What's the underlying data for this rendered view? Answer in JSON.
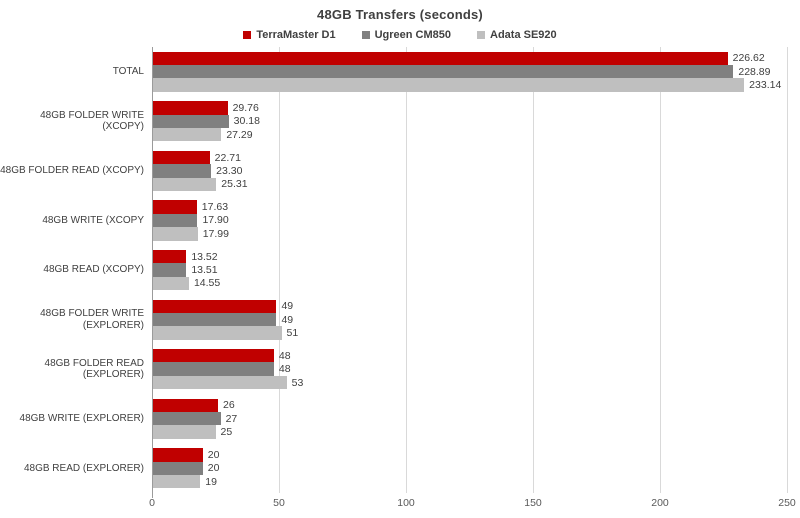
{
  "chart_data": {
    "type": "bar",
    "orientation": "horizontal",
    "title": "48GB Transfers (seconds)",
    "legend_position": "top",
    "grid": true,
    "categories": [
      "TOTAL",
      "48GB FOLDER WRITE (XCOPY)",
      "48GB FOLDER READ (XCOPY)",
      "48GB WRITE (XCOPY",
      "48GB READ (XCOPY)",
      "48GB FOLDER WRITE (EXPLORER)",
      "48GB FOLDER READ (EXPLORER)",
      "48GB WRITE (EXPLORER)",
      "48GB READ (EXPLORER)"
    ],
    "series": [
      {
        "name": "TerraMaster D1",
        "color": "#c00000",
        "values": [
          226.62,
          29.76,
          22.71,
          17.63,
          13.52,
          49,
          48,
          26,
          20
        ],
        "labels": [
          "226.62",
          "29.76",
          "22.71",
          "17.63",
          "13.52",
          "49",
          "48",
          "26",
          "20"
        ]
      },
      {
        "name": "Ugreen CM850",
        "color": "#808080",
        "values": [
          228.89,
          30.18,
          23.3,
          17.9,
          13.51,
          49,
          48,
          27,
          20
        ],
        "labels": [
          "228.89",
          "30.18",
          "23.30",
          "17.90",
          "13.51",
          "49",
          "48",
          "27",
          "20"
        ]
      },
      {
        "name": "Adata SE920",
        "color": "#bfbfbf",
        "values": [
          233.14,
          27.29,
          25.31,
          17.99,
          14.55,
          51,
          53,
          25,
          19
        ],
        "labels": [
          "233.14",
          "27.29",
          "25.31",
          "17.99",
          "14.55",
          "51",
          "53",
          "25",
          "19"
        ]
      }
    ],
    "x_axis": {
      "max": 250,
      "ticks": [
        0,
        50,
        100,
        150,
        200,
        250
      ],
      "tick_labels": [
        "0",
        "50",
        "100",
        "150",
        "200",
        "250"
      ]
    },
    "colors": {
      "grid": "#d9d9d9",
      "axis": "#9b9b9b",
      "title_text": "#3f3f3f",
      "label_text": "#404040",
      "tick_text": "#595959"
    }
  }
}
